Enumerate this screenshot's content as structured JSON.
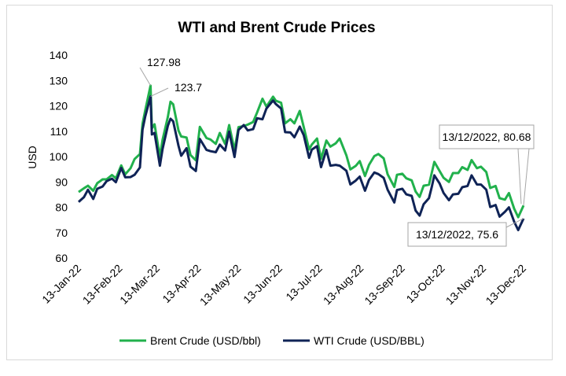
{
  "chart_data": {
    "type": "line",
    "title": "WTI and Brent Crude Prices",
    "xlabel": "",
    "ylabel": "USD",
    "ylim": [
      60,
      140
    ],
    "yticks": [
      60,
      70,
      80,
      90,
      100,
      110,
      120,
      130,
      140
    ],
    "xlim": [
      "2022-01-13",
      "2022-12-13"
    ],
    "xticks": [
      "13-Jan-22",
      "13-Feb-22",
      "13-Mar-22",
      "13-Apr-22",
      "13-May-22",
      "13-Jun-22",
      "13-Jul-22",
      "13-Aug-22",
      "13-Sep-22",
      "13-Oct-22",
      "13-Nov-22",
      "13-Dec-22"
    ],
    "grid": false,
    "legend_position": "bottom",
    "series": [
      {
        "name": "Brent Crude (USD/bbl)",
        "color": "#21b14c",
        "points": [
          [
            "2022-01-13",
            86
          ],
          [
            "2022-01-17",
            87.5
          ],
          [
            "2022-01-20",
            88.5
          ],
          [
            "2022-01-24",
            86.5
          ],
          [
            "2022-01-27",
            89.5
          ],
          [
            "2022-01-31",
            91
          ],
          [
            "2022-02-03",
            91
          ],
          [
            "2022-02-07",
            92.7
          ],
          [
            "2022-02-10",
            91.4
          ],
          [
            "2022-02-14",
            96.5
          ],
          [
            "2022-02-17",
            93
          ],
          [
            "2022-02-21",
            95.4
          ],
          [
            "2022-02-24",
            99
          ],
          [
            "2022-02-28",
            101
          ],
          [
            "2022-03-02",
            112.9
          ],
          [
            "2022-03-04",
            118.1
          ],
          [
            "2022-03-08",
            127.98
          ],
          [
            "2022-03-09",
            111.1
          ],
          [
            "2022-03-11",
            112.7
          ],
          [
            "2022-03-15",
            99.9
          ],
          [
            "2022-03-17",
            106.6
          ],
          [
            "2022-03-21",
            115.6
          ],
          [
            "2022-03-23",
            121.6
          ],
          [
            "2022-03-25",
            120.6
          ],
          [
            "2022-03-29",
            110.2
          ],
          [
            "2022-03-31",
            107.9
          ],
          [
            "2022-04-04",
            107.5
          ],
          [
            "2022-04-07",
            100.6
          ],
          [
            "2022-04-11",
            98.5
          ],
          [
            "2022-04-14",
            111.7
          ],
          [
            "2022-04-19",
            107.3
          ],
          [
            "2022-04-22",
            106.7
          ],
          [
            "2022-04-26",
            105
          ],
          [
            "2022-04-29",
            109.3
          ],
          [
            "2022-05-03",
            104.97
          ],
          [
            "2022-05-06",
            112.4
          ],
          [
            "2022-05-10",
            102.5
          ],
          [
            "2022-05-13",
            111.6
          ],
          [
            "2022-05-17",
            112
          ],
          [
            "2022-05-20",
            112.6
          ],
          [
            "2022-05-24",
            113.6
          ],
          [
            "2022-05-27",
            117.4
          ],
          [
            "2022-05-31",
            122.8
          ],
          [
            "2022-06-03",
            119.7
          ],
          [
            "2022-06-08",
            123.6
          ],
          [
            "2022-06-10",
            122
          ],
          [
            "2022-06-14",
            121.2
          ],
          [
            "2022-06-17",
            113.1
          ],
          [
            "2022-06-21",
            114.7
          ],
          [
            "2022-06-24",
            113.1
          ],
          [
            "2022-06-28",
            117.98
          ],
          [
            "2022-07-01",
            111.6
          ],
          [
            "2022-07-05",
            102.8
          ],
          [
            "2022-07-07",
            104.7
          ],
          [
            "2022-07-11",
            107.1
          ],
          [
            "2022-07-14",
            99.1
          ],
          [
            "2022-07-18",
            106.3
          ],
          [
            "2022-07-21",
            103.9
          ],
          [
            "2022-07-25",
            105.2
          ],
          [
            "2022-07-28",
            107.1
          ],
          [
            "2022-08-02",
            100.5
          ],
          [
            "2022-08-05",
            94.9
          ],
          [
            "2022-08-09",
            96.3
          ],
          [
            "2022-08-12",
            98.2
          ],
          [
            "2022-08-16",
            92.3
          ],
          [
            "2022-08-19",
            96.7
          ],
          [
            "2022-08-23",
            100.2
          ],
          [
            "2022-08-26",
            100.99
          ],
          [
            "2022-08-30",
            99.3
          ],
          [
            "2022-09-02",
            93
          ],
          [
            "2022-09-07",
            88
          ],
          [
            "2022-09-09",
            92.8
          ],
          [
            "2022-09-13",
            93.2
          ],
          [
            "2022-09-16",
            91.4
          ],
          [
            "2022-09-20",
            90.6
          ],
          [
            "2022-09-23",
            86.2
          ],
          [
            "2022-09-26",
            84.1
          ],
          [
            "2022-09-29",
            88.5
          ],
          [
            "2022-10-03",
            88.9
          ],
          [
            "2022-10-05",
            93.4
          ],
          [
            "2022-10-07",
            97.9
          ],
          [
            "2022-10-11",
            94.3
          ],
          [
            "2022-10-14",
            91.6
          ],
          [
            "2022-10-18",
            90
          ],
          [
            "2022-10-21",
            93.5
          ],
          [
            "2022-10-25",
            93.5
          ],
          [
            "2022-10-28",
            95.8
          ],
          [
            "2022-11-01",
            94.7
          ],
          [
            "2022-11-04",
            98.6
          ],
          [
            "2022-11-08",
            95.4
          ],
          [
            "2022-11-11",
            96
          ],
          [
            "2022-11-15",
            93.9
          ],
          [
            "2022-11-18",
            87.6
          ],
          [
            "2022-11-22",
            88.4
          ],
          [
            "2022-11-25",
            83.6
          ],
          [
            "2022-11-29",
            83
          ],
          [
            "2022-12-02",
            85.6
          ],
          [
            "2022-12-06",
            79.4
          ],
          [
            "2022-12-09",
            76.1
          ],
          [
            "2022-12-13",
            80.68
          ]
        ]
      },
      {
        "name": "WTI Crude (USD/BBL)",
        "color": "#0f2356",
        "points": [
          [
            "2022-01-13",
            82.1
          ],
          [
            "2022-01-17",
            84
          ],
          [
            "2022-01-20",
            86.9
          ],
          [
            "2022-01-24",
            83.3
          ],
          [
            "2022-01-27",
            87.3
          ],
          [
            "2022-01-31",
            88.2
          ],
          [
            "2022-02-03",
            90.3
          ],
          [
            "2022-02-07",
            91.3
          ],
          [
            "2022-02-10",
            89.9
          ],
          [
            "2022-02-14",
            95.5
          ],
          [
            "2022-02-17",
            91.8
          ],
          [
            "2022-02-21",
            91.9
          ],
          [
            "2022-02-24",
            92.8
          ],
          [
            "2022-02-28",
            95.7
          ],
          [
            "2022-03-02",
            110.6
          ],
          [
            "2022-03-04",
            115.7
          ],
          [
            "2022-03-08",
            123.7
          ],
          [
            "2022-03-09",
            108.7
          ],
          [
            "2022-03-11",
            109.3
          ],
          [
            "2022-03-15",
            96.4
          ],
          [
            "2022-03-17",
            102.98
          ],
          [
            "2022-03-21",
            112.1
          ],
          [
            "2022-03-23",
            114.9
          ],
          [
            "2022-03-25",
            113.9
          ],
          [
            "2022-03-29",
            104.2
          ],
          [
            "2022-03-31",
            100.3
          ],
          [
            "2022-04-04",
            103.3
          ],
          [
            "2022-04-07",
            96.03
          ],
          [
            "2022-04-11",
            94.3
          ],
          [
            "2022-04-14",
            106.95
          ],
          [
            "2022-04-19",
            102.6
          ],
          [
            "2022-04-22",
            102.1
          ],
          [
            "2022-04-26",
            101.7
          ],
          [
            "2022-04-29",
            104.7
          ],
          [
            "2022-05-03",
            102.4
          ],
          [
            "2022-05-06",
            109.8
          ],
          [
            "2022-05-10",
            99.8
          ],
          [
            "2022-05-13",
            110.5
          ],
          [
            "2022-05-17",
            112.4
          ],
          [
            "2022-05-20",
            110.3
          ],
          [
            "2022-05-24",
            110.8
          ],
          [
            "2022-05-27",
            115.1
          ],
          [
            "2022-05-31",
            114.7
          ],
          [
            "2022-06-03",
            118.9
          ],
          [
            "2022-06-08",
            122.1
          ],
          [
            "2022-06-10",
            120.7
          ],
          [
            "2022-06-14",
            118.9
          ],
          [
            "2022-06-17",
            109.6
          ],
          [
            "2022-06-21",
            109.5
          ],
          [
            "2022-06-24",
            107.6
          ],
          [
            "2022-06-28",
            111.8
          ],
          [
            "2022-07-01",
            108.4
          ],
          [
            "2022-07-05",
            99.5
          ],
          [
            "2022-07-07",
            102.7
          ],
          [
            "2022-07-11",
            104.1
          ],
          [
            "2022-07-14",
            95.8
          ],
          [
            "2022-07-18",
            102.6
          ],
          [
            "2022-07-21",
            96.4
          ],
          [
            "2022-07-25",
            96.7
          ],
          [
            "2022-07-28",
            96.4
          ],
          [
            "2022-08-02",
            94.4
          ],
          [
            "2022-08-05",
            89
          ],
          [
            "2022-08-09",
            90.5
          ],
          [
            "2022-08-12",
            92.1
          ],
          [
            "2022-08-16",
            86.5
          ],
          [
            "2022-08-19",
            90.8
          ],
          [
            "2022-08-23",
            93.7
          ],
          [
            "2022-08-26",
            93.1
          ],
          [
            "2022-08-30",
            91.6
          ],
          [
            "2022-09-02",
            86.9
          ],
          [
            "2022-09-07",
            81.9
          ],
          [
            "2022-09-09",
            86.8
          ],
          [
            "2022-09-13",
            87.3
          ],
          [
            "2022-09-16",
            85.1
          ],
          [
            "2022-09-20",
            84.5
          ],
          [
            "2022-09-23",
            78.7
          ],
          [
            "2022-09-26",
            76.7
          ],
          [
            "2022-09-29",
            81.2
          ],
          [
            "2022-10-03",
            83.6
          ],
          [
            "2022-10-05",
            87.8
          ],
          [
            "2022-10-07",
            92.6
          ],
          [
            "2022-10-11",
            89.4
          ],
          [
            "2022-10-14",
            85.6
          ],
          [
            "2022-10-18",
            82.8
          ],
          [
            "2022-10-21",
            85.1
          ],
          [
            "2022-10-25",
            85.3
          ],
          [
            "2022-10-28",
            87.9
          ],
          [
            "2022-11-01",
            88.4
          ],
          [
            "2022-11-04",
            92.6
          ],
          [
            "2022-11-08",
            89
          ],
          [
            "2022-11-11",
            88.96
          ],
          [
            "2022-11-15",
            86.9
          ],
          [
            "2022-11-18",
            80.1
          ],
          [
            "2022-11-22",
            80.9
          ],
          [
            "2022-11-25",
            76.3
          ],
          [
            "2022-11-29",
            78.2
          ],
          [
            "2022-12-02",
            79.98
          ],
          [
            "2022-12-06",
            74.3
          ],
          [
            "2022-12-09",
            71
          ],
          [
            "2022-12-13",
            75.6
          ]
        ]
      }
    ],
    "annotations": [
      {
        "text": "127.98",
        "series": 0,
        "date": "2022-03-08",
        "value": 127.98,
        "boxed": false
      },
      {
        "text": "123.7",
        "series": 1,
        "date": "2022-03-08",
        "value": 123.7,
        "boxed": false
      },
      {
        "text": "13/12/2022, 80.68",
        "series": 0,
        "date": "2022-12-13",
        "value": 80.68,
        "boxed": true
      },
      {
        "text": "13/12/2022, 75.6",
        "series": 1,
        "date": "2022-12-13",
        "value": 75.6,
        "boxed": true
      }
    ]
  }
}
